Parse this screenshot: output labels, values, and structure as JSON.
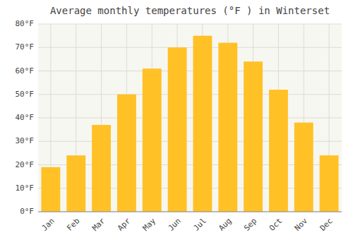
{
  "chart_data": {
    "type": "bar",
    "title": "Average monthly temperatures (°F ) in Winterset",
    "categories": [
      "Jan",
      "Feb",
      "Mar",
      "Apr",
      "May",
      "Jun",
      "Jul",
      "Aug",
      "Sep",
      "Oct",
      "Nov",
      "Dec"
    ],
    "values": [
      19,
      24,
      37,
      50,
      61,
      70,
      75,
      72,
      64,
      52,
      38,
      24
    ],
    "color": "#FFC125",
    "ylim": [
      0,
      80
    ],
    "yticks": [
      {
        "value": 0,
        "label": "0°F"
      },
      {
        "value": 10,
        "label": "10°F"
      },
      {
        "value": 20,
        "label": "20°F"
      },
      {
        "value": 30,
        "label": "30°F"
      },
      {
        "value": 40,
        "label": "40°F"
      },
      {
        "value": 50,
        "label": "50°F"
      },
      {
        "value": 60,
        "label": "60°F"
      },
      {
        "value": 70,
        "label": "70°F"
      },
      {
        "value": 80,
        "label": "80°F"
      }
    ],
    "grid": true
  }
}
